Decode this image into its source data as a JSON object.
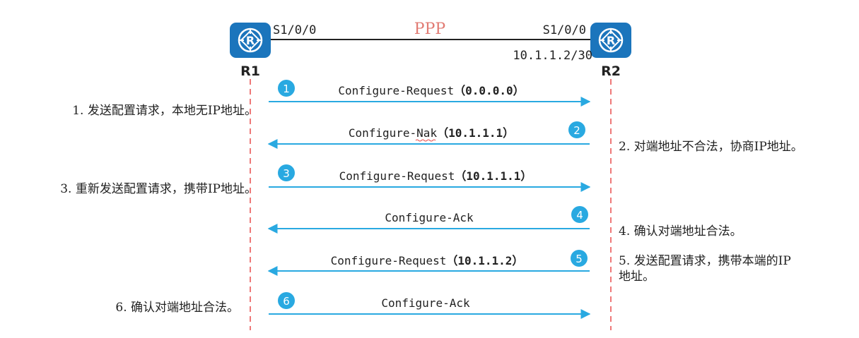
{
  "colors": {
    "router": "#1b75bc",
    "router_dark": "#145e97",
    "arrow": "#29a9e1",
    "badge": "#29a9e1",
    "lifeline": "#e94b4b",
    "ppp": "#e17a72",
    "text": "#222222",
    "squiggle": "#e94b4b"
  },
  "topology": {
    "link_label": "PPP",
    "r1": {
      "name": "R1",
      "interface": "S1/0/0",
      "icon": "router-icon"
    },
    "r2": {
      "name": "R2",
      "interface": "S1/0/0",
      "address": "10.1.1.2/30",
      "icon": "router-icon"
    }
  },
  "messages": [
    {
      "step": "1",
      "direction": "right",
      "name": "Configure-Request",
      "param": "（0.0.0.0）",
      "note": "1. 发送配置请求，本地无IP地址。",
      "note_side": "left"
    },
    {
      "step": "2",
      "direction": "left",
      "name_prefix": "Configure-",
      "name_flagged": "Nak",
      "param": "（10.1.1.1）",
      "note": "2. 对端地址不合法，协商IP地址。",
      "note_side": "right"
    },
    {
      "step": "3",
      "direction": "right",
      "name": "Configure-Request",
      "param": "（10.1.1.1）",
      "note": "3. 重新发送配置请求，携带IP地址。",
      "note_side": "left"
    },
    {
      "step": "4",
      "direction": "left",
      "name": "Configure-Ack",
      "param": "",
      "note": "4. 确认对端地址合法。",
      "note_side": "right"
    },
    {
      "step": "5",
      "direction": "left",
      "name": "Configure-Request",
      "param": "（10.1.1.2）",
      "note_lines": [
        "5. 发送配置请求，携带本端的IP",
        "地址。"
      ],
      "note_side": "right"
    },
    {
      "step": "6",
      "direction": "right",
      "name": "Configure-Ack",
      "param": "",
      "note": "6. 确认对端地址合法。",
      "note_side": "left"
    }
  ]
}
